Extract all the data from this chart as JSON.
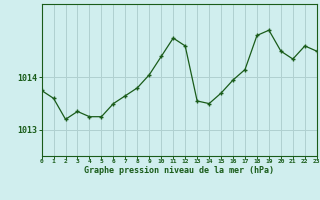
{
  "x": [
    0,
    1,
    2,
    3,
    4,
    5,
    6,
    7,
    8,
    9,
    10,
    11,
    12,
    13,
    14,
    15,
    16,
    17,
    18,
    19,
    20,
    21,
    22,
    23
  ],
  "y": [
    1013.75,
    1013.6,
    1013.2,
    1013.35,
    1013.25,
    1013.25,
    1013.5,
    1013.65,
    1013.8,
    1014.05,
    1014.4,
    1014.75,
    1014.6,
    1013.55,
    1013.5,
    1013.7,
    1013.95,
    1014.15,
    1014.8,
    1014.9,
    1014.5,
    1014.35,
    1014.6,
    1014.5
  ],
  "line_color": "#1a5c1a",
  "marker_color": "#1a5c1a",
  "bg_color": "#d0eeee",
  "grid_color": "#b0d0d0",
  "axis_label_color": "#1a5c1a",
  "title": "Graphe pression niveau de la mer (hPa)",
  "xlabel_ticks": [
    0,
    1,
    2,
    3,
    4,
    5,
    6,
    7,
    8,
    9,
    10,
    11,
    12,
    13,
    14,
    15,
    16,
    17,
    18,
    19,
    20,
    21,
    22,
    23
  ],
  "yticks": [
    1013.0,
    1014.0
  ],
  "ylim": [
    1012.5,
    1015.4
  ],
  "xlim": [
    0,
    23
  ]
}
